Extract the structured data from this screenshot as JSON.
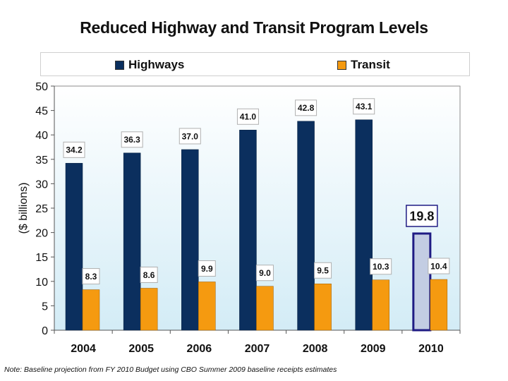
{
  "chart_data": {
    "type": "bar",
    "title": "Reduced Highway and Transit Program Levels",
    "xlabel": "",
    "ylabel": "($ billions)",
    "ylim": [
      0,
      50
    ],
    "yticks": [
      0,
      5,
      10,
      15,
      20,
      25,
      30,
      35,
      40,
      45,
      50
    ],
    "grid": false,
    "legend_position": "top",
    "categories": [
      "2004",
      "2005",
      "2006",
      "2007",
      "2008",
      "2009",
      "2010"
    ],
    "series": [
      {
        "name": "Highways",
        "color": "#0b2f5e",
        "values": [
          34.2,
          36.3,
          37.0,
          41.0,
          42.8,
          43.1,
          19.8
        ],
        "labels": [
          "34.2",
          "36.3",
          "37.0",
          "41.0",
          "42.8",
          "43.1",
          "19.8"
        ],
        "highlight_index": 6,
        "highlight_fill": "#c3cde3",
        "highlight_border": "#1f1b84"
      },
      {
        "name": "Transit",
        "color": "#f59a10",
        "values": [
          8.3,
          8.6,
          9.9,
          9.0,
          9.5,
          10.3,
          10.4
        ],
        "labels": [
          "8.3",
          "8.6",
          "9.9",
          "9.0",
          "9.5",
          "10.3",
          "10.4"
        ]
      }
    ]
  },
  "footnote": "Note: Baseline projection from FY 2010 Budget using CBO Summer 2009 baseline receipts estimates",
  "colors": {
    "plot_background_top": "#ffffff",
    "plot_background_bottom": "#d3ecf6"
  }
}
